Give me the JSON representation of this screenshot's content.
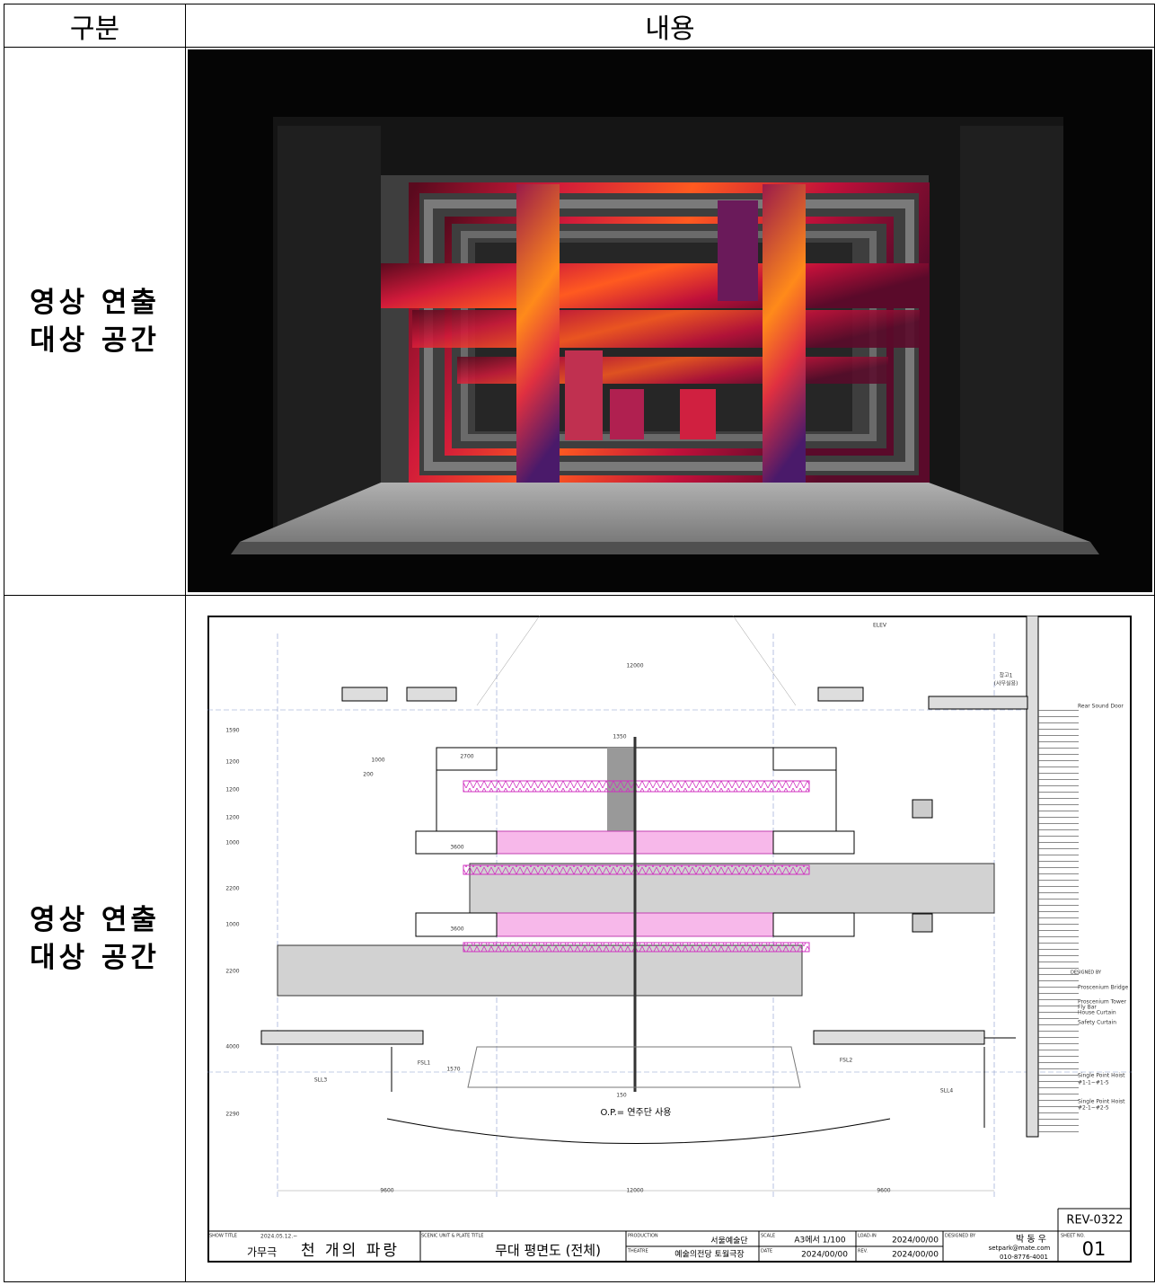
{
  "table": {
    "header": [
      "구분",
      "내용"
    ],
    "rows": [
      {
        "label": [
          "영상 연출",
          "대상 공간"
        ]
      },
      {
        "label": [
          "영상 연출",
          "대상 공간"
        ]
      }
    ]
  },
  "plan": {
    "dims": [
      "12000",
      "1350",
      "2700",
      "1000",
      "200",
      "3600",
      "3600",
      "1590",
      "1200",
      "1200",
      "1200",
      "1000",
      "2200",
      "1000",
      "2200",
      "4000",
      "2290",
      "9600",
      "12000",
      "9600",
      "1570",
      "150"
    ],
    "labels": [
      "ELEV",
      "창고1",
      "(사무실용)",
      "Rear Sound Door",
      "DESIGNED BY",
      "Proscenium Bridge",
      "Proscenium Tower",
      "Fly Bar",
      "House Curtain",
      "Safety Curtain",
      "Single Point Hoist",
      "#1-1~#1-5",
      "Single Point Hoist",
      "#2-1~#2-5",
      "FSL1",
      "FSL2",
      "SLL3",
      "SLL4",
      "O.P.= 연주단 사용"
    ],
    "title_block": {
      "show_title_head": "SHOW TITLE",
      "date": "2024.05.12.~",
      "genre": "가무극",
      "show_title": "천 개의 파랑",
      "plate_head": "SCENIC UNIT & PLATE TITLE",
      "plate_title": "무대 평면도 (전체)",
      "production_head": "PRODUCTION",
      "production": "서울예술단",
      "theatre_head": "THEATRE",
      "theatre": "예술의전당 토월극장",
      "scale_head": "SCALE",
      "scale": "A3에서 1/100",
      "date_head": "DATE",
      "date_value": "2024/00/00",
      "loadin_head": "LOAD-IN",
      "loadin": "2024/00/00",
      "rev_head": "REV.",
      "rev": "2024/00/00",
      "designed_head": "DESIGNED BY",
      "designer": "박 동 우",
      "email": "setpark@mate.com",
      "phone": "010-8776-4001",
      "sheet_head": "SHEET NO.",
      "sheet": "01",
      "revision": "REV-0322"
    }
  }
}
